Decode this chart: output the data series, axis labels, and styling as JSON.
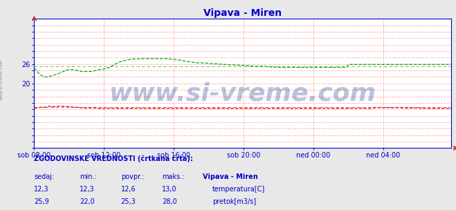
{
  "title": "Vipava - Miren",
  "title_color": "#0000cc",
  "bg_color": "#e8e8e8",
  "plot_bg_color": "#ffffff",
  "grid_color": "#ffaaaa",
  "axis_color": "#0000cc",
  "tick_color": "#0000cc",
  "xlim": [
    0,
    287
  ],
  "ylim": [
    0,
    40
  ],
  "yticks": [
    0,
    4,
    8,
    12,
    16,
    20,
    24,
    28,
    32,
    36,
    40
  ],
  "ytick_labels_show": {
    "20": 20,
    "26": 26
  },
  "xtick_positions": [
    0,
    48,
    96,
    144,
    192,
    240
  ],
  "xtick_labels": [
    "sob 08:00",
    "sob 12:00",
    "sob 16:00",
    "sob 20:00",
    "ned 00:00",
    "ned 04:00"
  ],
  "temp_color": "#dd0000",
  "flow_color": "#00aa00",
  "temp_avg": 12.6,
  "flow_avg": 25.3,
  "watermark": "www.si-vreme.com",
  "watermark_color": "#1a3a8a",
  "watermark_alpha": 0.3,
  "watermark_fontsize": 26,
  "left_label": "www.si-vreme.com",
  "left_label_color": "#6688aa",
  "legend_title": "ZGODOVINSKE VREDNOSTI (črtkana črta):",
  "col_headers": [
    "sedaj:",
    "min.:",
    "povpr.:",
    "maks.:",
    "Vipava - Miren"
  ],
  "temp_row": [
    "12,3",
    "12,3",
    "12,6",
    "13,0",
    "temperatura[C]"
  ],
  "flow_row": [
    "25,9",
    "22,0",
    "25,3",
    "28,0",
    "pretok[m3/s]"
  ],
  "temp_data": [
    12.5,
    12.4,
    12.4,
    12.5,
    12.6,
    12.7,
    12.7,
    12.6,
    12.7,
    12.8,
    12.9,
    12.9,
    12.8,
    12.8,
    12.8,
    12.9,
    12.9,
    12.9,
    13.0,
    13.0,
    12.9,
    12.9,
    12.9,
    12.8,
    12.7,
    12.7,
    12.7,
    12.7,
    12.7,
    12.6,
    12.6,
    12.5,
    12.5,
    12.4,
    12.4,
    12.4,
    12.4,
    12.4,
    12.4,
    12.4,
    12.4,
    12.4,
    12.4,
    12.4,
    12.3,
    12.3,
    12.3,
    12.3,
    12.3,
    12.3,
    12.3,
    12.3,
    12.3,
    12.3,
    12.3,
    12.3,
    12.3,
    12.3,
    12.3,
    12.3,
    12.3,
    12.3,
    12.3,
    12.3,
    12.3,
    12.3,
    12.3,
    12.3,
    12.3,
    12.3,
    12.3,
    12.3,
    12.3,
    12.3,
    12.3,
    12.3,
    12.3,
    12.3,
    12.3,
    12.3,
    12.3,
    12.3,
    12.3,
    12.3,
    12.3,
    12.3,
    12.3,
    12.3,
    12.3,
    12.3,
    12.3,
    12.3,
    12.3,
    12.3,
    12.3,
    12.3,
    12.3,
    12.3,
    12.3,
    12.3,
    12.3,
    12.3,
    12.3,
    12.3,
    12.3,
    12.3,
    12.3,
    12.3,
    12.3,
    12.3,
    12.3,
    12.3,
    12.3,
    12.3,
    12.3,
    12.3,
    12.3,
    12.3,
    12.3,
    12.3,
    12.3,
    12.3,
    12.3,
    12.3,
    12.3,
    12.3,
    12.3,
    12.3,
    12.3,
    12.3,
    12.3,
    12.3,
    12.3,
    12.3,
    12.3,
    12.3,
    12.3,
    12.3,
    12.3,
    12.3,
    12.3,
    12.3,
    12.3,
    12.3,
    12.3,
    12.3,
    12.3,
    12.3,
    12.3,
    12.3,
    12.3,
    12.3,
    12.3,
    12.3,
    12.3,
    12.3,
    12.3,
    12.3,
    12.3,
    12.3,
    12.3,
    12.3,
    12.3,
    12.3,
    12.3,
    12.3,
    12.3,
    12.3,
    12.3,
    12.3,
    12.3,
    12.3,
    12.3,
    12.3,
    12.3,
    12.3,
    12.3,
    12.3,
    12.3,
    12.3,
    12.3,
    12.3,
    12.3,
    12.3,
    12.3,
    12.3,
    12.3,
    12.3,
    12.3,
    12.3,
    12.3,
    12.3,
    12.3,
    12.3,
    12.3,
    12.3,
    12.3,
    12.3,
    12.3,
    12.3,
    12.3,
    12.3,
    12.3,
    12.3,
    12.3,
    12.3,
    12.3,
    12.3,
    12.3,
    12.3,
    12.3,
    12.3,
    12.3,
    12.3,
    12.3,
    12.3,
    12.3,
    12.3,
    12.3,
    12.3,
    12.3,
    12.3,
    12.3,
    12.3,
    12.3,
    12.3,
    12.3,
    12.3,
    12.3,
    12.3,
    12.3,
    12.3,
    12.3,
    12.4,
    12.4,
    12.5,
    12.5,
    12.5,
    12.5,
    12.5,
    12.5,
    12.5,
    12.5,
    12.5,
    12.5,
    12.5,
    12.5,
    12.5,
    12.5,
    12.5,
    12.5,
    12.5,
    12.5,
    12.4,
    12.4,
    12.4,
    12.4,
    12.4,
    12.4,
    12.4,
    12.4,
    12.4,
    12.4,
    12.4,
    12.4,
    12.4,
    12.3,
    12.3,
    12.3,
    12.3,
    12.3,
    12.3,
    12.3,
    12.3,
    12.3,
    12.3,
    12.3,
    12.3,
    12.3,
    12.3,
    12.3,
    12.3,
    12.3,
    12.3,
    12.3,
    12.3,
    12.3,
    12.3
  ],
  "flow_data": [
    24.8,
    24.3,
    23.7,
    23.2,
    22.8,
    22.5,
    22.3,
    22.1,
    22.0,
    22.0,
    22.1,
    22.2,
    22.4,
    22.5,
    22.7,
    22.8,
    22.9,
    23.1,
    23.3,
    23.5,
    23.7,
    23.9,
    24.1,
    24.2,
    24.3,
    24.3,
    24.3,
    24.3,
    24.2,
    24.1,
    24.0,
    23.9,
    23.8,
    23.7,
    23.7,
    23.7,
    23.7,
    23.7,
    23.7,
    23.7,
    23.8,
    23.9,
    24.0,
    24.1,
    24.2,
    24.3,
    24.3,
    24.4,
    24.5,
    24.6,
    24.7,
    24.9,
    25.1,
    25.3,
    25.5,
    25.8,
    26.1,
    26.3,
    26.5,
    26.7,
    26.8,
    27.0,
    27.1,
    27.2,
    27.3,
    27.4,
    27.5,
    27.5,
    27.6,
    27.6,
    27.6,
    27.6,
    27.6,
    27.6,
    27.7,
    27.7,
    27.7,
    27.7,
    27.7,
    27.7,
    27.7,
    27.7,
    27.7,
    27.7,
    27.7,
    27.7,
    27.7,
    27.7,
    27.7,
    27.7,
    27.7,
    27.7,
    27.6,
    27.6,
    27.6,
    27.5,
    27.5,
    27.4,
    27.4,
    27.3,
    27.3,
    27.2,
    27.1,
    27.0,
    26.9,
    26.8,
    26.8,
    26.7,
    26.6,
    26.6,
    26.5,
    26.5,
    26.4,
    26.4,
    26.4,
    26.4,
    26.3,
    26.3,
    26.3,
    26.3,
    26.2,
    26.2,
    26.2,
    26.2,
    26.1,
    26.1,
    26.1,
    26.0,
    26.0,
    26.0,
    25.9,
    25.9,
    25.9,
    25.9,
    25.8,
    25.8,
    25.8,
    25.8,
    25.7,
    25.7,
    25.7,
    25.7,
    25.6,
    25.6,
    25.6,
    25.5,
    25.5,
    25.5,
    25.4,
    25.4,
    25.4,
    25.3,
    25.3,
    25.3,
    25.3,
    25.3,
    25.3,
    25.3,
    25.3,
    25.3,
    25.2,
    25.2,
    25.2,
    25.1,
    25.1,
    25.1,
    25.0,
    25.0,
    25.0,
    25.0,
    25.0,
    25.0,
    25.0,
    25.0,
    25.0,
    25.0,
    25.0,
    25.0,
    25.0,
    25.0,
    25.0,
    25.0,
    25.0,
    25.0,
    25.0,
    25.0,
    25.0,
    25.0,
    25.0,
    25.0,
    25.0,
    25.0,
    25.0,
    25.0,
    25.0,
    25.0,
    25.0,
    25.0,
    25.0,
    25.0,
    25.0,
    25.0,
    25.0,
    25.0,
    25.0,
    25.0,
    25.0,
    25.0,
    25.0,
    25.0,
    25.0,
    25.0,
    25.0,
    25.0,
    25.0,
    25.0,
    25.9,
    25.9,
    25.9,
    25.9,
    25.9,
    25.9,
    25.9,
    25.9,
    25.9,
    25.9,
    25.9,
    25.9,
    25.9,
    25.9,
    25.9,
    25.9,
    25.9,
    25.9,
    25.9,
    25.9,
    25.9,
    25.9,
    25.9,
    25.9,
    25.9,
    25.9,
    25.9,
    25.9,
    25.9,
    25.9,
    25.9,
    25.9,
    25.9,
    25.9,
    25.9,
    25.9,
    25.9,
    25.9,
    25.9,
    25.9,
    25.9,
    25.9,
    25.9,
    25.9,
    25.9,
    25.9,
    25.9,
    25.9,
    25.9,
    25.9,
    25.9,
    25.9,
    25.9,
    25.9,
    25.9,
    25.9,
    25.9,
    25.9,
    25.9,
    25.9,
    25.9,
    25.9,
    25.9,
    25.9,
    25.9,
    25.9,
    25.9,
    25.9,
    25.9,
    25.9,
    25.9,
    25.9
  ]
}
